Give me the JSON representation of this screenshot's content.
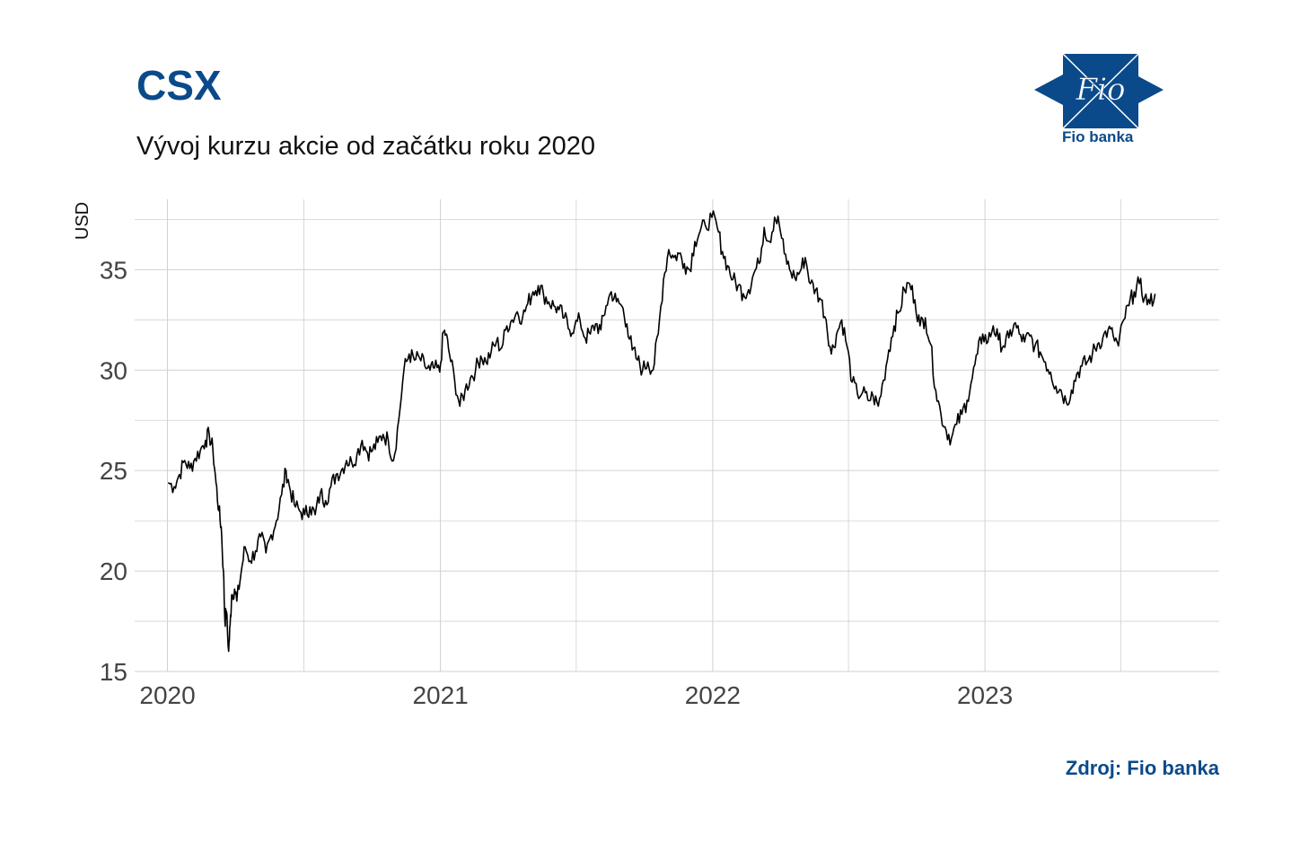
{
  "header": {
    "title": "CSX",
    "subtitle": "Vývoj kurzu akcie od začátku roku 2020"
  },
  "logo": {
    "mark_text": "Fio",
    "name": "Fio banka"
  },
  "footer": {
    "source": "Zdroj: Fio banka"
  },
  "colors": {
    "brand": "#0a4a8a",
    "line": "#000000",
    "grid": "#d0d0d0"
  },
  "chart_data": {
    "type": "line",
    "title": "CSX",
    "subtitle": "Vývoj kurzu akcie od začátku roku 2020",
    "ylabel": "USD",
    "xlabel": "",
    "ylim": [
      15,
      38.5
    ],
    "xlim": [
      "2019-11-18",
      "2023-11-11"
    ],
    "yticks": [
      15,
      20,
      25,
      30,
      35
    ],
    "xticks": [
      "2020-01-01",
      "2021-01-01",
      "2022-01-01",
      "2023-01-01"
    ],
    "xtick_labels": [
      "2020",
      "2021",
      "2022",
      "2023"
    ],
    "grid": true,
    "series": [
      {
        "values": [
          [
            "2020-01-02",
            24.4
          ],
          [
            "2020-01-10",
            24.2
          ],
          [
            "2020-01-17",
            24.8
          ],
          [
            "2020-01-24",
            25.5
          ],
          [
            "2020-01-31",
            25.1
          ],
          [
            "2020-02-07",
            25.6
          ],
          [
            "2020-02-14",
            26.0
          ],
          [
            "2020-02-21",
            26.5
          ],
          [
            "2020-02-26",
            26.8
          ],
          [
            "2020-03-02",
            26.0
          ],
          [
            "2020-03-06",
            24.4
          ],
          [
            "2020-03-10",
            23.0
          ],
          [
            "2020-03-13",
            22.2
          ],
          [
            "2020-03-16",
            20.0
          ],
          [
            "2020-03-18",
            17.5
          ],
          [
            "2020-03-20",
            18.0
          ],
          [
            "2020-03-23",
            16.0
          ],
          [
            "2020-03-25",
            17.3
          ],
          [
            "2020-03-27",
            18.8
          ],
          [
            "2020-03-31",
            19.1
          ],
          [
            "2020-04-03",
            18.5
          ],
          [
            "2020-04-09",
            20.0
          ],
          [
            "2020-04-14",
            21.2
          ],
          [
            "2020-04-21",
            20.5
          ],
          [
            "2020-04-28",
            21.0
          ],
          [
            "2020-05-05",
            21.7
          ],
          [
            "2020-05-12",
            20.9
          ],
          [
            "2020-05-19",
            21.8
          ],
          [
            "2020-05-26",
            22.5
          ],
          [
            "2020-06-02",
            23.8
          ],
          [
            "2020-06-08",
            25.0
          ],
          [
            "2020-06-12",
            24.3
          ],
          [
            "2020-06-19",
            23.3
          ],
          [
            "2020-06-26",
            23.0
          ],
          [
            "2020-07-03",
            22.8
          ],
          [
            "2020-07-10",
            23.2
          ],
          [
            "2020-07-17",
            22.8
          ],
          [
            "2020-07-24",
            23.9
          ],
          [
            "2020-07-31",
            23.5
          ],
          [
            "2020-08-07",
            24.2
          ],
          [
            "2020-08-14",
            24.8
          ],
          [
            "2020-08-21",
            25.0
          ],
          [
            "2020-08-28",
            25.5
          ],
          [
            "2020-09-04",
            25.4
          ],
          [
            "2020-09-11",
            25.8
          ],
          [
            "2020-09-18",
            26.5
          ],
          [
            "2020-09-25",
            25.9
          ],
          [
            "2020-10-02",
            26.0
          ],
          [
            "2020-10-09",
            26.4
          ],
          [
            "2020-10-16",
            26.8
          ],
          [
            "2020-10-23",
            26.5
          ],
          [
            "2020-10-30",
            25.5
          ],
          [
            "2020-11-06",
            27.5
          ],
          [
            "2020-11-13",
            30.0
          ],
          [
            "2020-11-20",
            30.8
          ],
          [
            "2020-11-27",
            30.5
          ],
          [
            "2020-12-04",
            30.6
          ],
          [
            "2020-12-11",
            30.2
          ],
          [
            "2020-12-18",
            30.0
          ],
          [
            "2020-12-24",
            30.1
          ],
          [
            "2020-12-31",
            29.9
          ],
          [
            "2021-01-05",
            31.9
          ],
          [
            "2021-01-08",
            31.8
          ],
          [
            "2021-01-13",
            30.8
          ],
          [
            "2021-01-20",
            29.5
          ],
          [
            "2021-01-27",
            28.2
          ],
          [
            "2021-02-03",
            29.0
          ],
          [
            "2021-02-10",
            29.6
          ],
          [
            "2021-02-17",
            30.0
          ],
          [
            "2021-02-24",
            30.7
          ],
          [
            "2021-03-03",
            30.4
          ],
          [
            "2021-03-10",
            30.9
          ],
          [
            "2021-03-17",
            31.4
          ],
          [
            "2021-03-24",
            31.1
          ],
          [
            "2021-03-31",
            32.2
          ],
          [
            "2021-04-07",
            32.5
          ],
          [
            "2021-04-14",
            32.9
          ],
          [
            "2021-04-21",
            32.6
          ],
          [
            "2021-04-28",
            33.3
          ],
          [
            "2021-05-05",
            33.9
          ],
          [
            "2021-05-12",
            34.2
          ],
          [
            "2021-05-19",
            33.8
          ],
          [
            "2021-05-26",
            33.4
          ],
          [
            "2021-06-02",
            33.2
          ],
          [
            "2021-06-09",
            33.0
          ],
          [
            "2021-06-16",
            32.6
          ],
          [
            "2021-06-23",
            32.0
          ],
          [
            "2021-06-30",
            32.2
          ],
          [
            "2021-07-07",
            32.5
          ],
          [
            "2021-07-14",
            31.6
          ],
          [
            "2021-07-21",
            31.8
          ],
          [
            "2021-07-28",
            32.3
          ],
          [
            "2021-08-04",
            32.0
          ],
          [
            "2021-08-11",
            33.2
          ],
          [
            "2021-08-18",
            33.9
          ],
          [
            "2021-08-25",
            33.4
          ],
          [
            "2021-09-01",
            33.2
          ],
          [
            "2021-09-08",
            32.3
          ],
          [
            "2021-09-15",
            31.0
          ],
          [
            "2021-09-22",
            30.5
          ],
          [
            "2021-09-29",
            30.0
          ],
          [
            "2021-10-06",
            30.4
          ],
          [
            "2021-10-13",
            30.0
          ],
          [
            "2021-10-20",
            31.8
          ],
          [
            "2021-10-27",
            34.5
          ],
          [
            "2021-11-03",
            36.0
          ],
          [
            "2021-11-10",
            35.6
          ],
          [
            "2021-11-17",
            35.8
          ],
          [
            "2021-11-24",
            35.3
          ],
          [
            "2021-12-01",
            35.0
          ],
          [
            "2021-12-08",
            36.4
          ],
          [
            "2021-12-15",
            36.9
          ],
          [
            "2021-12-22",
            37.2
          ],
          [
            "2021-12-31",
            37.6
          ],
          [
            "2022-01-07",
            37.1
          ],
          [
            "2022-01-14",
            35.9
          ],
          [
            "2022-01-21",
            35.2
          ],
          [
            "2022-01-28",
            34.5
          ],
          [
            "2022-02-04",
            34.2
          ],
          [
            "2022-02-11",
            33.8
          ],
          [
            "2022-02-18",
            34.0
          ],
          [
            "2022-02-25",
            34.8
          ],
          [
            "2022-03-04",
            35.3
          ],
          [
            "2022-03-11",
            37.1
          ],
          [
            "2022-03-18",
            36.4
          ],
          [
            "2022-03-25",
            37.6
          ],
          [
            "2022-03-31",
            37.3
          ],
          [
            "2022-04-07",
            35.8
          ],
          [
            "2022-04-14",
            35.0
          ],
          [
            "2022-04-21",
            34.6
          ],
          [
            "2022-04-28",
            34.9
          ],
          [
            "2022-05-05",
            35.6
          ],
          [
            "2022-05-12",
            34.3
          ],
          [
            "2022-05-19",
            34.0
          ],
          [
            "2022-05-26",
            33.5
          ],
          [
            "2022-06-02",
            32.5
          ],
          [
            "2022-06-09",
            30.8
          ],
          [
            "2022-06-16",
            31.8
          ],
          [
            "2022-06-23",
            32.5
          ],
          [
            "2022-06-30",
            31.2
          ],
          [
            "2022-07-07",
            29.4
          ],
          [
            "2022-07-14",
            28.8
          ],
          [
            "2022-07-21",
            28.9
          ],
          [
            "2022-07-28",
            28.5
          ],
          [
            "2022-08-04",
            28.7
          ],
          [
            "2022-08-11",
            28.2
          ],
          [
            "2022-08-18",
            29.5
          ],
          [
            "2022-08-25",
            31.0
          ],
          [
            "2022-09-01",
            32.2
          ],
          [
            "2022-09-08",
            32.9
          ],
          [
            "2022-09-15",
            34.0
          ],
          [
            "2022-09-22",
            34.3
          ],
          [
            "2022-09-29",
            33.5
          ],
          [
            "2022-10-06",
            32.2
          ],
          [
            "2022-10-13",
            32.6
          ],
          [
            "2022-10-20",
            31.3
          ],
          [
            "2022-10-27",
            29.0
          ],
          [
            "2022-11-03",
            27.8
          ],
          [
            "2022-11-10",
            27.0
          ],
          [
            "2022-11-17",
            26.6
          ],
          [
            "2022-11-24",
            27.3
          ],
          [
            "2022-12-01",
            27.8
          ],
          [
            "2022-12-08",
            28.5
          ],
          [
            "2022-12-15",
            29.6
          ],
          [
            "2022-12-22",
            30.8
          ],
          [
            "2022-12-29",
            31.8
          ],
          [
            "2023-01-05",
            31.4
          ],
          [
            "2023-01-12",
            32.2
          ],
          [
            "2023-01-19",
            31.5
          ],
          [
            "2023-01-26",
            31.2
          ],
          [
            "2023-02-02",
            31.6
          ],
          [
            "2023-02-09",
            32.3
          ],
          [
            "2023-02-16",
            31.8
          ],
          [
            "2023-02-23",
            31.4
          ],
          [
            "2023-03-02",
            31.7
          ],
          [
            "2023-03-09",
            31.2
          ],
          [
            "2023-03-16",
            30.9
          ],
          [
            "2023-03-23",
            30.4
          ],
          [
            "2023-03-30",
            29.9
          ],
          [
            "2023-04-06",
            29.2
          ],
          [
            "2023-04-13",
            29.0
          ],
          [
            "2023-04-20",
            28.4
          ],
          [
            "2023-04-27",
            29.0
          ],
          [
            "2023-05-04",
            29.8
          ],
          [
            "2023-05-11",
            30.2
          ],
          [
            "2023-05-18",
            30.4
          ],
          [
            "2023-05-25",
            30.8
          ],
          [
            "2023-06-01",
            31.3
          ],
          [
            "2023-06-08",
            31.6
          ],
          [
            "2023-06-15",
            32.0
          ],
          [
            "2023-06-22",
            31.7
          ],
          [
            "2023-06-29",
            31.2
          ],
          [
            "2023-07-06",
            32.5
          ],
          [
            "2023-07-13",
            33.2
          ],
          [
            "2023-07-20",
            33.9
          ],
          [
            "2023-07-27",
            34.3
          ],
          [
            "2023-08-03",
            33.6
          ],
          [
            "2023-08-10",
            33.3
          ],
          [
            "2023-08-17",
            33.8
          ]
        ]
      }
    ]
  }
}
